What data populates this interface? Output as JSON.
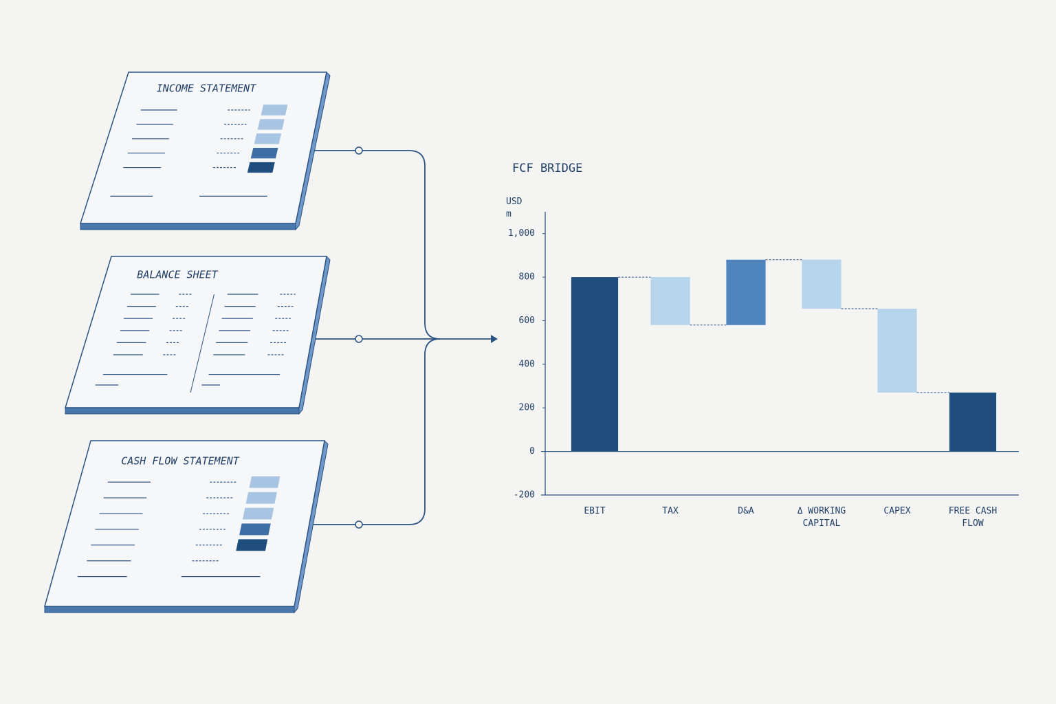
{
  "documents": [
    {
      "title": "INCOME STATEMENT"
    },
    {
      "title": "BALANCE SHEET"
    },
    {
      "title": "CASH FLOW STATEMENT"
    }
  ],
  "chart_data": {
    "type": "waterfall",
    "title": "FCF BRIDGE",
    "y_label": "USD m",
    "categories": [
      "EBIT",
      "TAX",
      "D&A",
      "Δ WORKING CAPITAL",
      "CAPEX",
      "FREE CASH FLOW"
    ],
    "values": [
      800,
      -220,
      300,
      -225,
      -385,
      270
    ],
    "measure": [
      "absolute",
      "relative",
      "relative",
      "relative",
      "relative",
      "total"
    ],
    "colors": [
      "#1f4e7e",
      "#b6d4eb",
      "#4f84bd",
      "#b6d4eb",
      "#b6d4eb",
      "#1f4e7e"
    ],
    "ylim": [
      -200,
      1100
    ],
    "yticks": [
      -200,
      0,
      200,
      400,
      600,
      800,
      {
        "value": 1000,
        "label": "1,000"
      }
    ],
    "grid": false
  }
}
